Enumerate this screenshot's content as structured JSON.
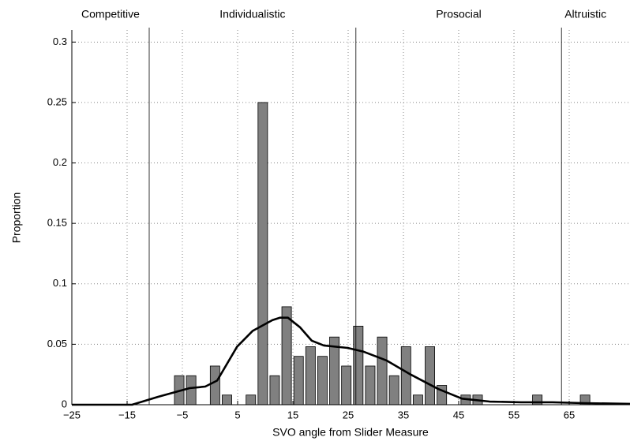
{
  "chart_data": {
    "type": "histogram",
    "xlabel": "SVO angle from Slider Measure",
    "ylabel": "Proportion",
    "bins": [
      -6.65,
      -4.49,
      -2.33,
      -0.17,
      1.99,
      4.15,
      6.31,
      8.47,
      10.63,
      12.79,
      14.95,
      17.11,
      19.27,
      21.43,
      23.59,
      25.75,
      27.91,
      30.07,
      32.23,
      34.39,
      36.55,
      38.71,
      40.87,
      43.03,
      45.19,
      47.35,
      49.51,
      51.67,
      53.83,
      55.99,
      58.15,
      60.31,
      62.47,
      64.63,
      66.79,
      68.95
    ],
    "values": [
      0.024,
      0.024,
      0,
      0.032,
      0.008,
      0,
      0.008,
      0.25,
      0.024,
      0.081,
      0.04,
      0.048,
      0.04,
      0.056,
      0.032,
      0.065,
      0.032,
      0.056,
      0.024,
      0.048,
      0.008,
      0.048,
      0.016,
      0,
      0.008,
      0.008,
      0,
      0,
      0,
      0,
      0.008,
      0,
      0,
      0,
      0.008
    ],
    "color": "#808080",
    "density": {
      "color": "#000000",
      "x": [
        -25,
        -14.1,
        -9.4,
        -3.7,
        -0.86,
        1.3,
        4.9,
        7.7,
        11.3,
        12.7,
        14.1,
        16.3,
        18.4,
        20.6,
        24.9,
        27.7,
        32,
        36.3,
        41.3,
        45.6,
        50.6,
        56.3,
        62,
        67.7,
        76
      ],
      "values": [
        0,
        0,
        0.0065,
        0.0137,
        0.015,
        0.02,
        0.048,
        0.061,
        0.07,
        0.072,
        0.072,
        0.064,
        0.053,
        0.049,
        0.047,
        0.044,
        0.0365,
        0.025,
        0.013,
        0.005,
        0.0026,
        0.002,
        0.002,
        0.0013,
        0.0007
      ]
    },
    "boundaries": [
      -11,
      26.4,
      63.6
    ],
    "regions": [
      "Competitive",
      "Individualistic",
      "Prosocial",
      "Altruistic"
    ],
    "xlim": [
      -25,
      76
    ],
    "ylim": [
      0,
      0.31
    ],
    "xticks": [
      {
        "value": -25,
        "label": "−25"
      },
      {
        "value": -15,
        "label": "−15"
      },
      {
        "value": -5,
        "label": "−5"
      },
      5,
      15,
      25,
      35,
      45,
      55,
      65
    ],
    "yticks": [
      0,
      0.05,
      0.1,
      0.15,
      0.2,
      0.25,
      0.3
    ],
    "grid": true
  }
}
